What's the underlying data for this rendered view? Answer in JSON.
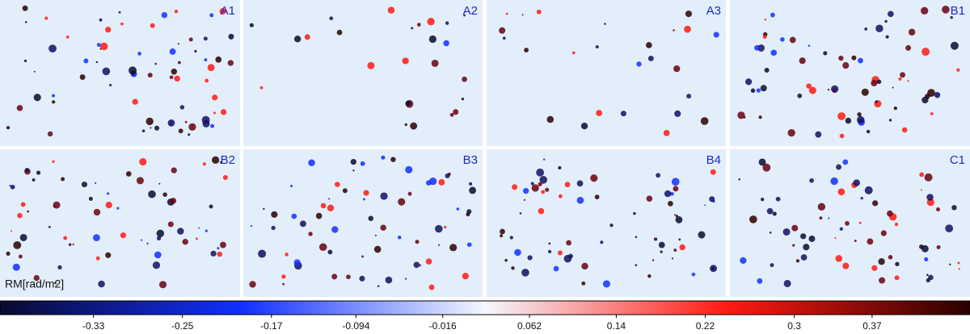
{
  "chart_data": {
    "type": "colormap",
    "panels": [
      "A1",
      "A2",
      "A3",
      "B1",
      "B2",
      "B3",
      "B4",
      "C1"
    ],
    "colorbar_label": "RM[rad/m2]",
    "xlim": [
      -0.414,
      0.458
    ],
    "xticks": [
      -0.33,
      -0.25,
      -0.17,
      -0.094,
      -0.016,
      0.062,
      0.14,
      0.22,
      0.3,
      0.37
    ],
    "colormap": [
      "#0a0a30",
      "#1030ff",
      "#f4f8ff",
      "#ff1a10",
      "#2a0000"
    ],
    "background_color": "#e3eefb"
  }
}
